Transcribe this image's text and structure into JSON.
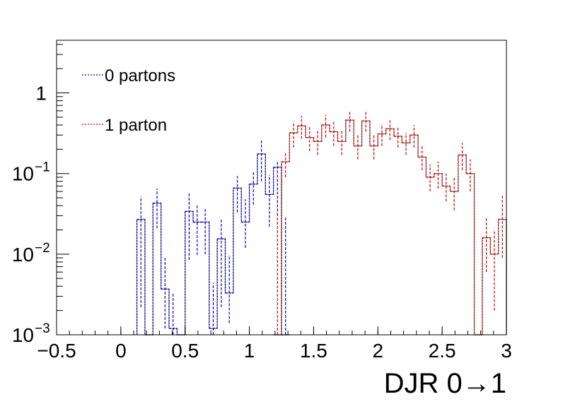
{
  "chart_data": {
    "type": "histogram",
    "title": "",
    "xlabel": "DJR 0→1",
    "ylabel": "",
    "xlim": [
      -0.5,
      3.0
    ],
    "ylim": [
      0.001,
      4.5
    ],
    "yscale": "log",
    "grid": false,
    "legend_position": "top-left",
    "bin_width": 0.0625,
    "x_ticks": [
      "−0.5",
      "0",
      "0.5",
      "1",
      "1.5",
      "2",
      "2.5",
      "3"
    ],
    "x_tick_values": [
      -0.5,
      0,
      0.5,
      1,
      1.5,
      2,
      2.5,
      3
    ],
    "y_ticks": [
      {
        "value": 0.001,
        "base": "10",
        "exp": "−3"
      },
      {
        "value": 0.01,
        "base": "10",
        "exp": "−2"
      },
      {
        "value": 0.1,
        "base": "10",
        "exp": "−1"
      },
      {
        "value": 1,
        "base": "1",
        "exp": ""
      }
    ],
    "series": [
      {
        "name": "0 partons",
        "color": "#0000cc",
        "style": "dashed",
        "bins": [
          {
            "lo": 0.125,
            "v": 0.027,
            "elo": 0.0022,
            "ehi": 0.052
          },
          {
            "lo": 0.1875,
            "v": 0.001,
            "elo": 0.001,
            "ehi": 0.001
          },
          {
            "lo": 0.25,
            "v": 0.043,
            "elo": 0.021,
            "ehi": 0.065
          },
          {
            "lo": 0.3125,
            "v": 0.0037,
            "elo": 0.0012,
            "ehi": 0.0092
          },
          {
            "lo": 0.375,
            "v": 0.0012,
            "elo": 0.001,
            "ehi": 0.0033
          },
          {
            "lo": 0.4375,
            "v": 0.001,
            "elo": 0.001,
            "ehi": 0.001
          },
          {
            "lo": 0.5,
            "v": 0.034,
            "elo": 0.0085,
            "ehi": 0.057
          },
          {
            "lo": 0.5625,
            "v": 0.025,
            "elo": 0.0098,
            "ehi": 0.041
          },
          {
            "lo": 0.625,
            "v": 0.025,
            "elo": 0.01,
            "ehi": 0.037
          },
          {
            "lo": 0.6875,
            "v": 0.0012,
            "elo": 0.001,
            "ehi": 0.0044
          },
          {
            "lo": 0.75,
            "v": 0.0155,
            "elo": 0.0022,
            "ehi": 0.028
          },
          {
            "lo": 0.8125,
            "v": 0.0033,
            "elo": 0.0014,
            "ehi": 0.0098
          },
          {
            "lo": 0.875,
            "v": 0.066,
            "elo": 0.033,
            "ehi": 0.093
          },
          {
            "lo": 0.9375,
            "v": 0.025,
            "elo": 0.012,
            "ehi": 0.048
          },
          {
            "lo": 1.0,
            "v": 0.074,
            "elo": 0.041,
            "ehi": 0.108
          },
          {
            "lo": 1.0625,
            "v": 0.175,
            "elo": 0.08,
            "ehi": 0.26
          },
          {
            "lo": 1.125,
            "v": 0.055,
            "elo": 0.022,
            "ehi": 0.096
          },
          {
            "lo": 1.1875,
            "v": 0.12,
            "elo": 0.03,
            "ehi": 0.14
          },
          {
            "lo": 1.25,
            "v": 0.001,
            "elo": 0.001,
            "ehi": 0.029
          }
        ]
      },
      {
        "name": "1 parton",
        "color": "#cc0000",
        "style": "dashed",
        "bins": [
          {
            "lo": 1.1875,
            "v": 0.001,
            "elo": 0.001,
            "ehi": 0.03
          },
          {
            "lo": 1.25,
            "v": 0.14,
            "elo": 0.09,
            "ehi": 0.18
          },
          {
            "lo": 1.3125,
            "v": 0.32,
            "elo": 0.21,
            "ehi": 0.44
          },
          {
            "lo": 1.375,
            "v": 0.39,
            "elo": 0.27,
            "ehi": 0.52
          },
          {
            "lo": 1.4375,
            "v": 0.28,
            "elo": 0.19,
            "ehi": 0.38
          },
          {
            "lo": 1.5,
            "v": 0.25,
            "elo": 0.17,
            "ehi": 0.34
          },
          {
            "lo": 1.5625,
            "v": 0.4,
            "elo": 0.28,
            "ehi": 0.53
          },
          {
            "lo": 1.625,
            "v": 0.33,
            "elo": 0.22,
            "ehi": 0.45
          },
          {
            "lo": 1.6875,
            "v": 0.25,
            "elo": 0.17,
            "ehi": 0.35
          },
          {
            "lo": 1.75,
            "v": 0.46,
            "elo": 0.33,
            "ehi": 0.6
          },
          {
            "lo": 1.8125,
            "v": 0.22,
            "elo": 0.15,
            "ehi": 0.31
          },
          {
            "lo": 1.875,
            "v": 0.45,
            "elo": 0.33,
            "ehi": 0.58
          },
          {
            "lo": 1.9375,
            "v": 0.22,
            "elo": 0.15,
            "ehi": 0.3
          },
          {
            "lo": 2.0,
            "v": 0.31,
            "elo": 0.22,
            "ehi": 0.41
          },
          {
            "lo": 2.0625,
            "v": 0.36,
            "elo": 0.26,
            "ehi": 0.47
          },
          {
            "lo": 2.125,
            "v": 0.29,
            "elo": 0.21,
            "ehi": 0.38
          },
          {
            "lo": 2.1875,
            "v": 0.24,
            "elo": 0.17,
            "ehi": 0.32
          },
          {
            "lo": 2.25,
            "v": 0.3,
            "elo": 0.21,
            "ehi": 0.4
          },
          {
            "lo": 2.3125,
            "v": 0.16,
            "elo": 0.11,
            "ehi": 0.22
          },
          {
            "lo": 2.375,
            "v": 0.09,
            "elo": 0.06,
            "ehi": 0.13
          },
          {
            "lo": 2.4375,
            "v": 0.1,
            "elo": 0.065,
            "ehi": 0.14
          },
          {
            "lo": 2.5,
            "v": 0.07,
            "elo": 0.045,
            "ehi": 0.1
          },
          {
            "lo": 2.5625,
            "v": 0.06,
            "elo": 0.035,
            "ehi": 0.09
          },
          {
            "lo": 2.625,
            "v": 0.17,
            "elo": 0.11,
            "ehi": 0.24
          },
          {
            "lo": 2.6875,
            "v": 0.1,
            "elo": 0.06,
            "ehi": 0.15
          },
          {
            "lo": 2.75,
            "v": 0.001,
            "elo": 0.001,
            "ehi": 0.001
          },
          {
            "lo": 2.8125,
            "v": 0.016,
            "elo": 0.006,
            "ehi": 0.028
          },
          {
            "lo": 2.875,
            "v": 0.01,
            "elo": 0.002,
            "ehi": 0.02
          },
          {
            "lo": 2.9375,
            "v": 0.027,
            "elo": 0.009,
            "ehi": 0.055
          }
        ]
      }
    ]
  }
}
